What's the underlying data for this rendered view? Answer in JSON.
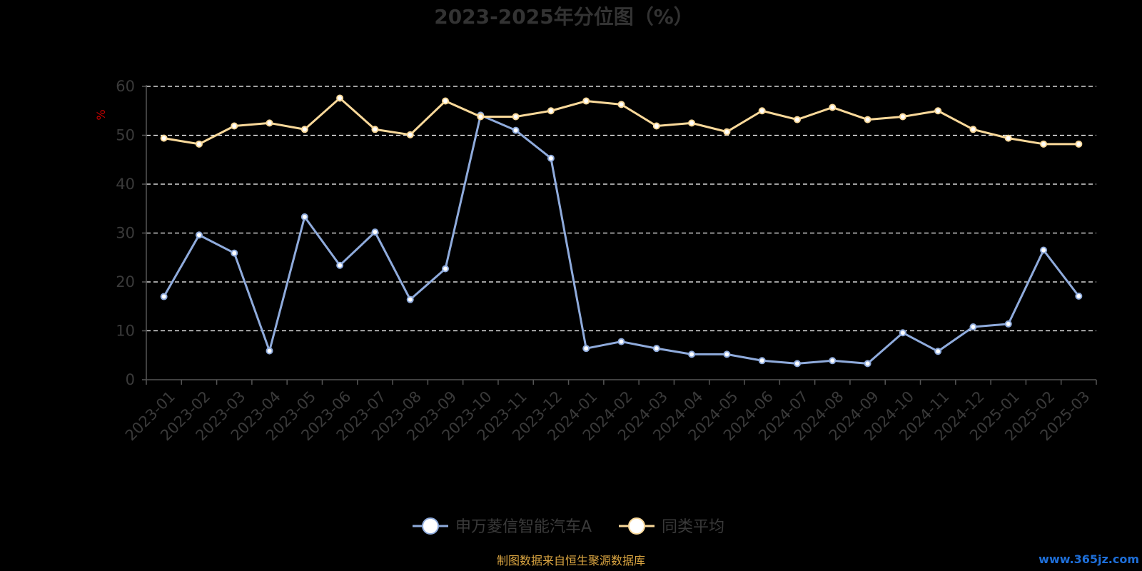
{
  "chart_data": {
    "type": "line",
    "title": "2023-2025年分位图（%）",
    "ylabel": "%",
    "ylim": [
      0,
      60
    ],
    "yticks": [
      0,
      10,
      20,
      30,
      40,
      50,
      60
    ],
    "grid": true,
    "legend_position": "bottom-center",
    "categories": [
      "2023-01",
      "2023-02",
      "2023-03",
      "2023-04",
      "2023-05",
      "2023-06",
      "2023-07",
      "2023-08",
      "2023-09",
      "2023-10",
      "2023-11",
      "2023-12",
      "2024-01",
      "2024-02",
      "2024-03",
      "2024-04",
      "2024-05",
      "2024-06",
      "2024-07",
      "2024-08",
      "2024-09",
      "2024-10",
      "2024-11",
      "2024-12",
      "2025-01",
      "2025-02",
      "2025-03"
    ],
    "series": [
      {
        "name": "申万菱信智能汽车A",
        "color": "#8fabdc",
        "values": [
          17.0,
          29.6,
          25.9,
          5.9,
          33.3,
          23.4,
          30.2,
          16.4,
          22.7,
          54.1,
          51.0,
          45.3,
          6.4,
          7.8,
          6.4,
          5.2,
          5.2,
          3.9,
          3.3,
          3.9,
          3.3,
          9.6,
          5.8,
          10.8,
          11.4,
          26.5,
          17.1
        ]
      },
      {
        "name": "同类平均",
        "color": "#fad99a",
        "values": [
          49.4,
          48.2,
          51.9,
          52.5,
          51.2,
          57.6,
          51.2,
          50.1,
          57.0,
          53.8,
          53.8,
          55.0,
          57.0,
          56.3,
          51.9,
          52.5,
          50.7,
          55.0,
          53.2,
          55.7,
          53.2,
          53.8,
          55.0,
          51.2,
          49.4,
          48.2,
          48.2
        ]
      }
    ]
  },
  "footer": {
    "source": "制图数据来自恒生聚源数据库"
  },
  "watermark": {
    "text": "www.365jz.com"
  },
  "colors": {
    "background": "#000000",
    "grid": "#ffffff",
    "axis": "#555555"
  }
}
